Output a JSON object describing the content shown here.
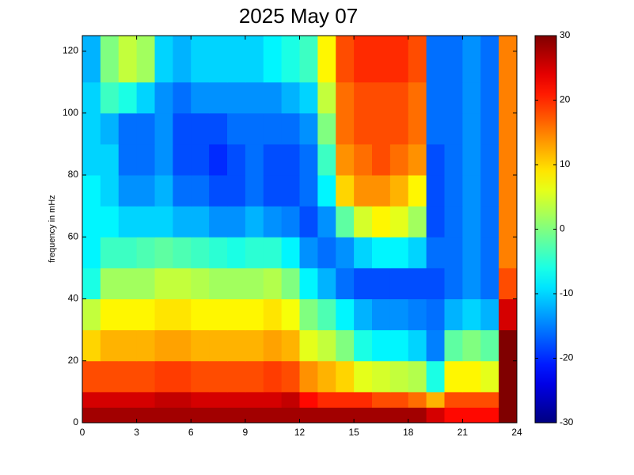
{
  "chart_data": {
    "type": "heatmap",
    "title": "2025 May 07",
    "y_label": "frequency in mHz",
    "x_edges": [
      0,
      1,
      2,
      3,
      4,
      5,
      6,
      7,
      8,
      9,
      10,
      11,
      12,
      13,
      14,
      15,
      16,
      17,
      18,
      19,
      20,
      21,
      22,
      23,
      24
    ],
    "y_edges": [
      0,
      5,
      10,
      20,
      30,
      40,
      50,
      60,
      70,
      80,
      90,
      100,
      110,
      125
    ],
    "z": [
      [
        28,
        28,
        28,
        28,
        28,
        28,
        28,
        28,
        28,
        28,
        28,
        28,
        28,
        28,
        28,
        28,
        28,
        28,
        28,
        25,
        22,
        22,
        22,
        30
      ],
      [
        25,
        25,
        25,
        25,
        26,
        26,
        25,
        25,
        25,
        25,
        25,
        26,
        22,
        20,
        20,
        20,
        18,
        18,
        16,
        12,
        18,
        18,
        18,
        30
      ],
      [
        18,
        18,
        18,
        18,
        19,
        19,
        18,
        18,
        18,
        18,
        19,
        18,
        14,
        12,
        10,
        6,
        5,
        4,
        3,
        -6,
        8,
        8,
        6,
        30
      ],
      [
        10,
        12,
        12,
        12,
        13,
        13,
        12,
        12,
        12,
        12,
        13,
        12,
        6,
        4,
        0,
        -6,
        -8,
        -8,
        -10,
        -15,
        -2,
        0,
        -2,
        30
      ],
      [
        4,
        8,
        8,
        8,
        9,
        9,
        8,
        8,
        8,
        8,
        9,
        7,
        0,
        -3,
        -8,
        -12,
        -14,
        -14,
        -15,
        -16,
        -12,
        -10,
        -12,
        25
      ],
      [
        -6,
        2,
        2,
        2,
        4,
        4,
        3,
        2,
        2,
        2,
        3,
        0,
        -8,
        -12,
        -16,
        -18,
        -18,
        -18,
        -18,
        -18,
        -16,
        -14,
        -16,
        18
      ],
      [
        -8,
        -4,
        -4,
        -3,
        -2,
        -3,
        -4,
        -5,
        -6,
        -5,
        -5,
        -8,
        -14,
        -16,
        -14,
        -10,
        -8,
        -8,
        -10,
        -16,
        -16,
        -14,
        -16,
        15
      ],
      [
        -8,
        -8,
        -10,
        -10,
        -10,
        -12,
        -12,
        -14,
        -14,
        -12,
        -14,
        -15,
        -18,
        -14,
        -2,
        5,
        8,
        6,
        2,
        -18,
        -16,
        -14,
        -16,
        15
      ],
      [
        -8,
        -10,
        -14,
        -14,
        -12,
        -16,
        -16,
        -18,
        -18,
        -16,
        -18,
        -18,
        -16,
        -8,
        10,
        14,
        14,
        12,
        8,
        -18,
        -16,
        -14,
        -16,
        15
      ],
      [
        -10,
        -10,
        -16,
        -16,
        -14,
        -18,
        -18,
        -20,
        -18,
        -16,
        -18,
        -18,
        -16,
        -4,
        14,
        16,
        18,
        16,
        14,
        -18,
        -16,
        -14,
        -16,
        15
      ],
      [
        -10,
        -12,
        -16,
        -16,
        -14,
        -18,
        -18,
        -18,
        -16,
        -16,
        -16,
        -16,
        -14,
        0,
        16,
        18,
        18,
        18,
        16,
        -16,
        -16,
        -14,
        -16,
        15
      ],
      [
        -10,
        -4,
        -6,
        -10,
        -14,
        -16,
        -14,
        -14,
        -14,
        -14,
        -14,
        -12,
        -10,
        4,
        16,
        18,
        18,
        18,
        16,
        -16,
        -16,
        -14,
        -16,
        15
      ],
      [
        -12,
        0,
        4,
        2,
        -10,
        -12,
        -10,
        -10,
        -10,
        -10,
        -8,
        -6,
        -4,
        8,
        18,
        20,
        20,
        20,
        18,
        -16,
        -16,
        -14,
        -16,
        15
      ]
    ],
    "xlim": [
      0,
      24
    ],
    "xticks": [
      0,
      3,
      6,
      9,
      12,
      15,
      18,
      21,
      24
    ],
    "ylim": [
      0,
      125
    ],
    "yticks": [
      0,
      20,
      40,
      60,
      80,
      100,
      120
    ],
    "colormap": "jet",
    "clim": [
      -30,
      30
    ],
    "colorbar_ticks": [
      -30,
      -20,
      -10,
      0,
      10,
      20,
      30
    ]
  }
}
